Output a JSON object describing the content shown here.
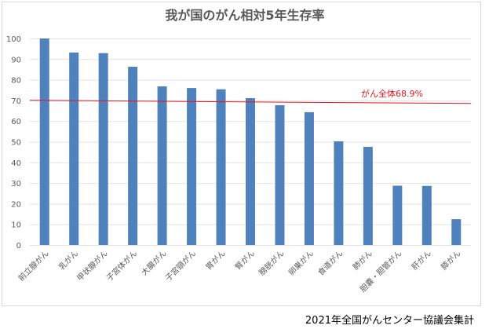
{
  "chart_data": {
    "type": "bar",
    "title": "我が国のがん相対5年生存率",
    "categories": [
      "前立腺がん",
      "乳がん",
      "甲状腺がん",
      "子宮体がん",
      "大腸がん",
      "子宮頸がん",
      "胃がん",
      "腎がん",
      "膀胱がん",
      "卵巣がん",
      "食道がん",
      "肺がん",
      "胆嚢・胆管がん",
      "肝がん",
      "膵がん"
    ],
    "values": [
      100,
      93.2,
      92.9,
      86.3,
      76.8,
      76.0,
      75.4,
      71.1,
      67.7,
      64.3,
      50.2,
      47.5,
      28.7,
      28.6,
      12.5
    ],
    "ylim": [
      0,
      100
    ],
    "yticks": [
      0,
      10,
      20,
      30,
      40,
      50,
      60,
      70,
      80,
      90,
      100
    ],
    "xlabel": "",
    "ylabel": "",
    "grid": true,
    "reference_line": {
      "label": "がん全体68.9%",
      "value": 68.9
    },
    "bar_color": "#4f81bd",
    "line_color": "#e8141b"
  },
  "source": "2021年全国がんセンター協議会集計"
}
